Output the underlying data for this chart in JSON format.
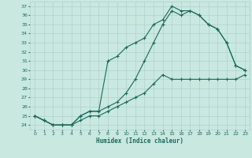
{
  "xlabel": "Humidex (Indice chaleur)",
  "bg_color": "#c8e8e0",
  "grid_color": "#b0d0cc",
  "line_color": "#1a6a5a",
  "xlim": [
    -0.5,
    23.5
  ],
  "ylim": [
    23.5,
    37.5
  ],
  "xticks": [
    0,
    1,
    2,
    3,
    4,
    5,
    6,
    7,
    8,
    9,
    10,
    11,
    12,
    13,
    14,
    15,
    16,
    17,
    18,
    19,
    20,
    21,
    22,
    23
  ],
  "yticks": [
    24,
    25,
    26,
    27,
    28,
    29,
    30,
    31,
    32,
    33,
    34,
    35,
    36,
    37
  ],
  "line1_x": [
    0,
    1,
    2,
    3,
    4,
    5,
    6,
    7,
    8,
    9,
    10,
    11,
    12,
    13,
    14,
    15,
    16,
    17,
    18,
    19,
    20,
    21,
    22,
    23
  ],
  "line1_y": [
    25.0,
    24.5,
    24.0,
    24.0,
    24.0,
    24.5,
    25.0,
    25.0,
    25.5,
    26.0,
    26.5,
    27.0,
    27.5,
    28.5,
    29.5,
    29.0,
    29.0,
    29.0,
    29.0,
    29.0,
    29.0,
    29.0,
    29.0,
    29.5
  ],
  "line2_x": [
    0,
    1,
    2,
    3,
    4,
    5,
    6,
    7,
    8,
    9,
    10,
    11,
    12,
    13,
    14,
    15,
    16,
    17,
    18,
    19,
    20,
    21,
    22,
    23
  ],
  "line2_y": [
    25.0,
    24.5,
    24.0,
    24.0,
    24.0,
    25.0,
    25.5,
    25.5,
    31.0,
    31.5,
    32.5,
    33.0,
    33.5,
    35.0,
    35.5,
    37.0,
    36.5,
    36.5,
    36.0,
    35.0,
    34.5,
    33.0,
    30.5,
    30.0
  ],
  "line3_x": [
    0,
    1,
    2,
    3,
    4,
    5,
    6,
    7,
    8,
    9,
    10,
    11,
    12,
    13,
    14,
    15,
    16,
    17,
    18,
    19,
    20,
    21,
    22,
    23
  ],
  "line3_y": [
    25.0,
    24.5,
    24.0,
    24.0,
    24.0,
    25.0,
    25.5,
    25.5,
    26.0,
    26.5,
    27.5,
    29.0,
    31.0,
    33.0,
    35.0,
    36.5,
    36.0,
    36.5,
    36.0,
    35.0,
    34.5,
    33.0,
    30.5,
    30.0
  ]
}
